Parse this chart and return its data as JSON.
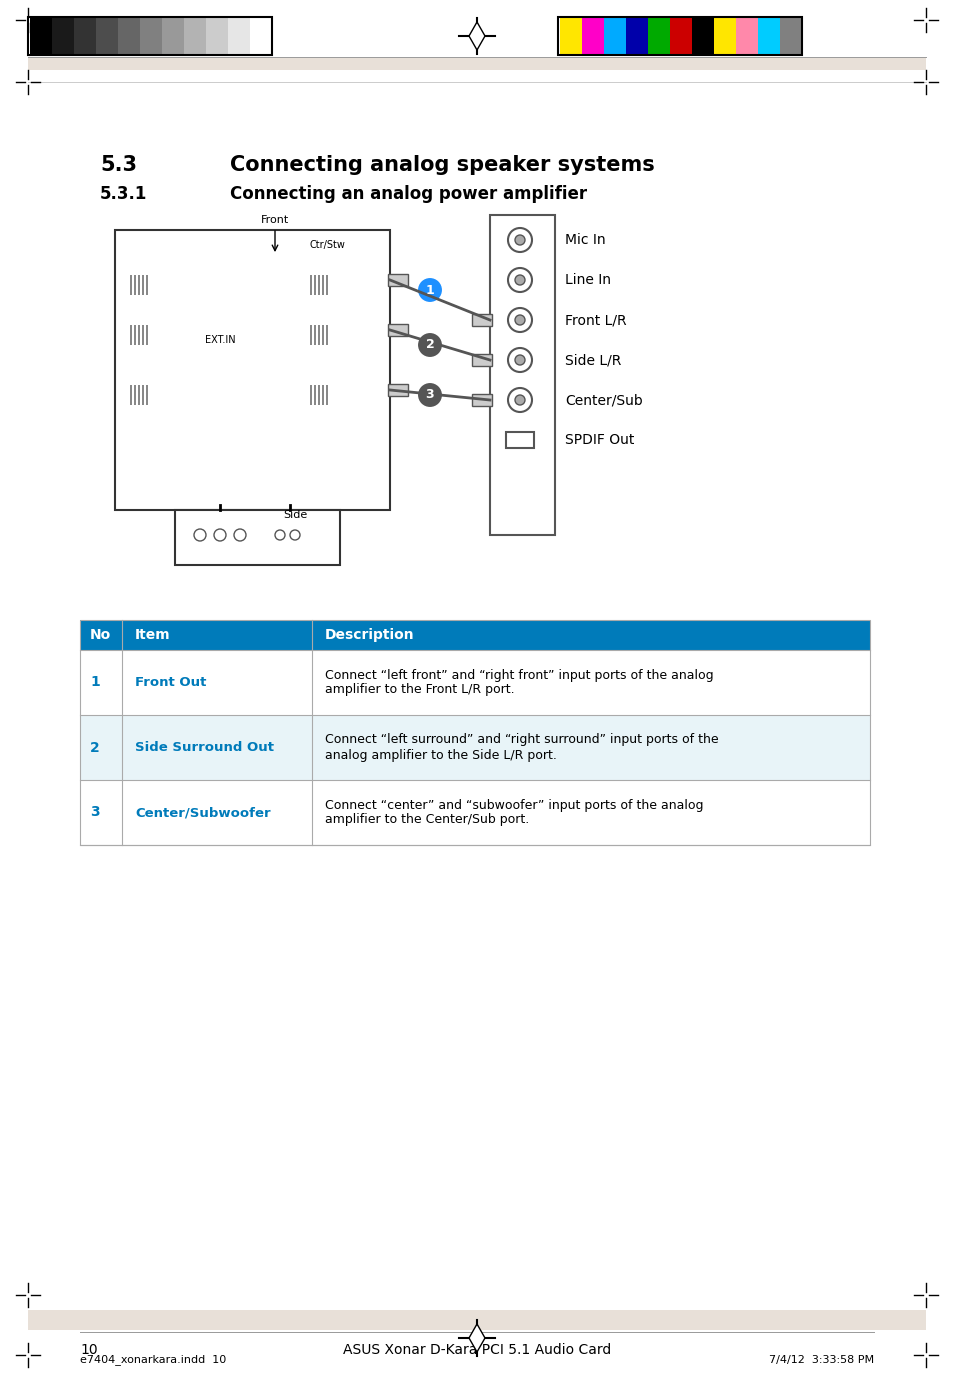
{
  "title_section": "5.3",
  "title_text": "Connecting analog speaker systems",
  "subtitle_section": "5.3.1",
  "subtitle_text": "Connecting an analog power amplifier",
  "table_headers": [
    "No",
    "Item",
    "Description"
  ],
  "table_rows": [
    {
      "no": "1",
      "item": "Front Out",
      "desc": "Connect “left front” and “right front” input ports of the analog\namplifier to the Front L/R port."
    },
    {
      "no": "2",
      "item": "Side Surround Out",
      "desc": "Connect “left surround” and “right surround” input ports of the\nanalog amplifier to the Side L/R port."
    },
    {
      "no": "3",
      "item": "Center/Subwoofer",
      "desc": "Connect “center” and “subwoofer” input ports of the analog\namplifier to the Center/Sub port."
    }
  ],
  "port_labels": [
    "Mic In",
    "Line In",
    "Front L/R",
    "Side L/R",
    "Center/Sub",
    "SPDIF Out"
  ],
  "header_bg": "#007BBA",
  "row1_bg": "#FFFFFF",
  "row2_bg": "#E8F4F8",
  "row3_bg": "#FFFFFF",
  "header_text_color": "#FFFFFF",
  "item_color": "#007BBA",
  "no_color": "#007BBA",
  "page_number": "10",
  "page_footer": "ASUS Xonar D-Kara PCI 5.1 Audio Card",
  "footer_left": "e7404_xonarkara.indd  10",
  "footer_right": "7/4/12  3:33:58 PM",
  "bg_color": "#FFFFFF",
  "header_stripe_colors": [
    "#000000",
    "#1a1a1a",
    "#333333",
    "#4d4d4d",
    "#666666",
    "#808080",
    "#999999",
    "#b3b3b3",
    "#cccccc",
    "#e6e6e6",
    "#ffffff"
  ],
  "color_stripe_colors": [
    "#FFE600",
    "#FF00C8",
    "#00AAFF",
    "#0000AA",
    "#00AA00",
    "#CC0000",
    "#000000",
    "#FFE600",
    "#FF88AA",
    "#00CCFF",
    "#808080"
  ]
}
